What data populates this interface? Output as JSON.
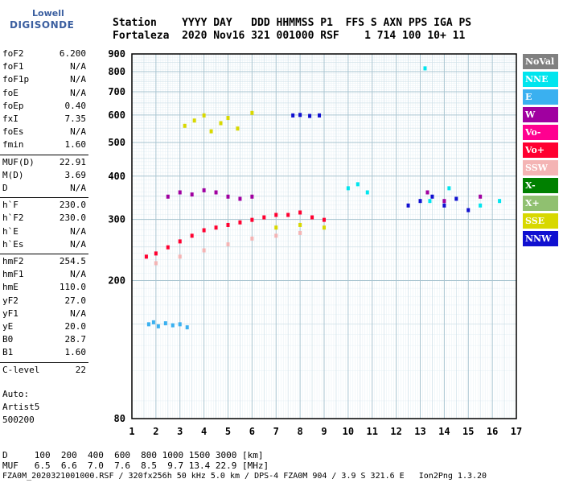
{
  "logo": {
    "line1": "Lowell",
    "line2": "DIGISONDE"
  },
  "header": {
    "line1": "Station    YYYY DAY   DDD HHMMSS P1  FFS S AXN PPS IGA PS",
    "line2": "Fortaleza  2020 Nov16 321 001000 RSF    1 714 100 10+ 11"
  },
  "params": [
    {
      "name": "foF2",
      "value": "6.200"
    },
    {
      "name": "foF1",
      "value": "N/A"
    },
    {
      "name": "foF1p",
      "value": "N/A"
    },
    {
      "name": "foE",
      "value": "N/A"
    },
    {
      "name": "foEp",
      "value": "0.40"
    },
    {
      "name": "fxI",
      "value": "7.35"
    },
    {
      "name": "foEs",
      "value": "N/A"
    },
    {
      "name": "fmin",
      "value": "1.60"
    },
    {
      "name": "MUF(D)",
      "value": "22.91"
    },
    {
      "name": "M(D)",
      "value": "3.69"
    },
    {
      "name": "D",
      "value": "N/A"
    },
    {
      "name": "h`F",
      "value": "230.0"
    },
    {
      "name": "h`F2",
      "value": "230.0"
    },
    {
      "name": "h`E",
      "value": "N/A"
    },
    {
      "name": "h`Es",
      "value": "N/A"
    },
    {
      "name": "hmF2",
      "value": "254.5"
    },
    {
      "name": "hmF1",
      "value": "N/A"
    },
    {
      "name": "hmE",
      "value": "110.0"
    },
    {
      "name": "yF2",
      "value": "27.0"
    },
    {
      "name": "yF1",
      "value": "N/A"
    },
    {
      "name": "yE",
      "value": "20.0"
    },
    {
      "name": "B0",
      "value": "28.7"
    },
    {
      "name": "B1",
      "value": "1.60"
    },
    {
      "name": "C-level",
      "value": "22"
    }
  ],
  "autoscale": {
    "line1": "Auto:",
    "line2": "Artist5",
    "line3": "500200"
  },
  "footer": {
    "d_row": "D     100  200  400  600  800 1000 1500 3000 [km]",
    "muf_row": "MUF   6.5  6.6  7.0  7.6  8.5  9.7 13.4 22.9 [MHz]",
    "file_row": "FZA0M_2020321001000.RSF / 320fx256h 50 kHz 5.0 km / DPS-4 FZA0M 904 / 3.9 S 321.6 E   Ion2Png 1.3.20"
  },
  "legend": [
    {
      "label": "NoVal",
      "color": "#808080"
    },
    {
      "label": "NNE",
      "color": "#00e5ee"
    },
    {
      "label": "E",
      "color": "#3ab0f0"
    },
    {
      "label": "W",
      "color": "#a000a0"
    },
    {
      "label": "Vo-",
      "color": "#ff0090"
    },
    {
      "label": "Vo+",
      "color": "#ff0030"
    },
    {
      "label": "SSW",
      "color": "#f4b4b4"
    },
    {
      "label": "X-",
      "color": "#008000"
    },
    {
      "label": "X+",
      "color": "#90c070"
    },
    {
      "label": "SSE",
      "color": "#d8d800"
    },
    {
      "label": "NNW",
      "color": "#1010d0"
    }
  ],
  "chart_data": {
    "type": "scatter",
    "title": "",
    "xlabel": "",
    "ylabel": "",
    "xlim": [
      1,
      17
    ],
    "ylim": [
      80,
      900
    ],
    "yscale": "log",
    "x_ticks": [
      1,
      2,
      3,
      4,
      5,
      6,
      7,
      8,
      9,
      10,
      11,
      12,
      13,
      14,
      15,
      16,
      17
    ],
    "y_ticks": [
      80,
      200,
      300,
      400,
      500,
      600,
      700,
      800,
      900
    ],
    "grid": true,
    "legend_position": "right",
    "series": [
      {
        "name": "E",
        "color": "#3ab0f0",
        "points": [
          [
            1.7,
            150
          ],
          [
            1.9,
            152
          ],
          [
            2.1,
            148
          ],
          [
            2.4,
            151
          ],
          [
            2.7,
            149
          ],
          [
            3.0,
            150
          ],
          [
            3.3,
            147
          ]
        ]
      },
      {
        "name": "Vo+",
        "color": "#ff0030",
        "points": [
          [
            1.6,
            235
          ],
          [
            2.0,
            240
          ],
          [
            2.5,
            250
          ],
          [
            3.0,
            260
          ],
          [
            3.5,
            270
          ],
          [
            4.0,
            280
          ],
          [
            4.5,
            285
          ],
          [
            5.0,
            290
          ],
          [
            5.5,
            295
          ],
          [
            6.0,
            300
          ],
          [
            6.5,
            305
          ],
          [
            7.0,
            310
          ],
          [
            7.5,
            310
          ],
          [
            8.0,
            315
          ],
          [
            8.5,
            305
          ],
          [
            9.0,
            300
          ]
        ]
      },
      {
        "name": "W",
        "color": "#a000a0",
        "points": [
          [
            2.5,
            350
          ],
          [
            3.0,
            360
          ],
          [
            3.5,
            355
          ],
          [
            4.0,
            365
          ],
          [
            4.5,
            360
          ],
          [
            5.0,
            350
          ],
          [
            5.5,
            345
          ],
          [
            6.0,
            350
          ],
          [
            13.3,
            360
          ],
          [
            14.0,
            340
          ],
          [
            15.5,
            350
          ]
        ]
      },
      {
        "name": "SSE",
        "color": "#d8d800",
        "points": [
          [
            3.2,
            560
          ],
          [
            3.6,
            580
          ],
          [
            4.0,
            600
          ],
          [
            4.3,
            540
          ],
          [
            4.7,
            570
          ],
          [
            5.0,
            590
          ],
          [
            5.4,
            550
          ],
          [
            6.0,
            610
          ],
          [
            7.0,
            285
          ],
          [
            8.0,
            290
          ],
          [
            9.0,
            285
          ]
        ]
      },
      {
        "name": "NNW",
        "color": "#1010d0",
        "points": [
          [
            7.7,
            600
          ],
          [
            8.0,
            602
          ],
          [
            8.4,
            598
          ],
          [
            8.8,
            600
          ],
          [
            12.5,
            330
          ],
          [
            13.0,
            340
          ],
          [
            13.5,
            350
          ],
          [
            14.0,
            330
          ],
          [
            14.5,
            345
          ],
          [
            15.0,
            320
          ]
        ]
      },
      {
        "name": "NNE",
        "color": "#00e5ee",
        "points": [
          [
            10.0,
            370
          ],
          [
            10.4,
            380
          ],
          [
            10.8,
            360
          ],
          [
            13.2,
            820
          ],
          [
            13.4,
            340
          ],
          [
            14.2,
            370
          ],
          [
            15.5,
            330
          ],
          [
            16.3,
            340
          ]
        ]
      },
      {
        "name": "SSW",
        "color": "#f4b4b4",
        "points": [
          [
            2.0,
            225
          ],
          [
            3.0,
            235
          ],
          [
            4.0,
            245
          ],
          [
            5.0,
            255
          ],
          [
            6.0,
            265
          ],
          [
            7.0,
            270
          ],
          [
            8.0,
            275
          ]
        ]
      }
    ]
  }
}
